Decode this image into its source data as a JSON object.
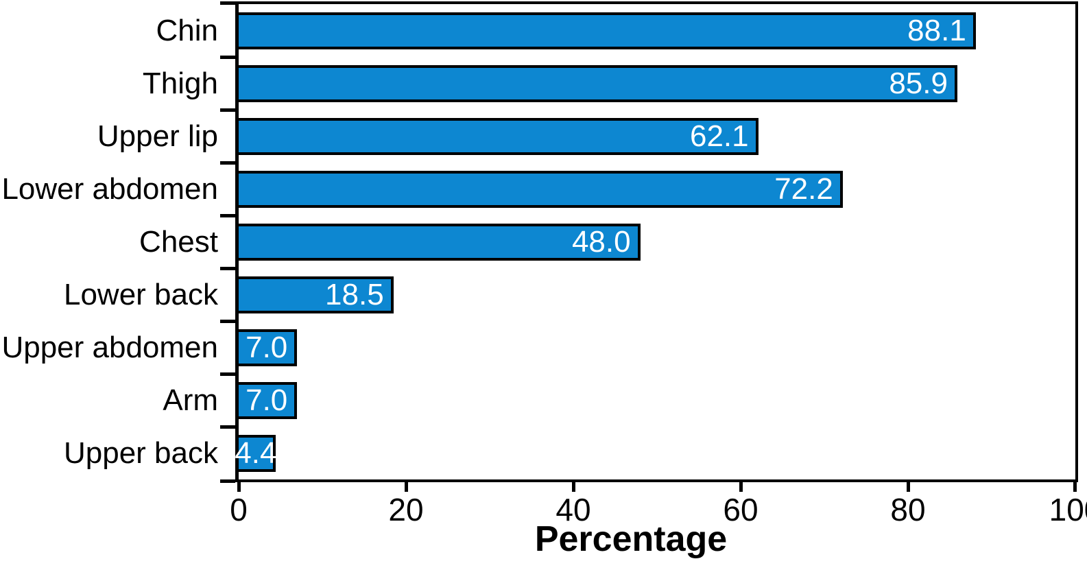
{
  "chart_data": {
    "type": "bar",
    "orientation": "horizontal",
    "title": "",
    "xlabel": "Percentage",
    "ylabel": "",
    "categories": [
      "Chin",
      "Thigh",
      "Upper lip",
      "Lower abdomen",
      "Chest",
      "Lower back",
      "Upper abdomen",
      "Arm",
      "Upper back"
    ],
    "values": [
      88.1,
      85.9,
      62.1,
      72.2,
      48.0,
      18.5,
      7.0,
      7.0,
      4.4
    ],
    "value_labels": [
      "88.1",
      "85.9",
      "62.1",
      "72.2",
      "48.0",
      "18.5",
      "7.0",
      "7.0",
      "4.4"
    ],
    "xlim": [
      0,
      100
    ],
    "xticks": [
      0,
      20,
      40,
      60,
      80,
      100
    ],
    "xtick_labels": [
      "0",
      "20",
      "40",
      "60",
      "80",
      "100"
    ],
    "grid": false,
    "legend": null,
    "colors": {
      "bar_fill": "#0d87d1",
      "bar_border": "#000000",
      "value_label": "#ffffff",
      "axis": "#000000",
      "background": "#ffffff"
    }
  }
}
